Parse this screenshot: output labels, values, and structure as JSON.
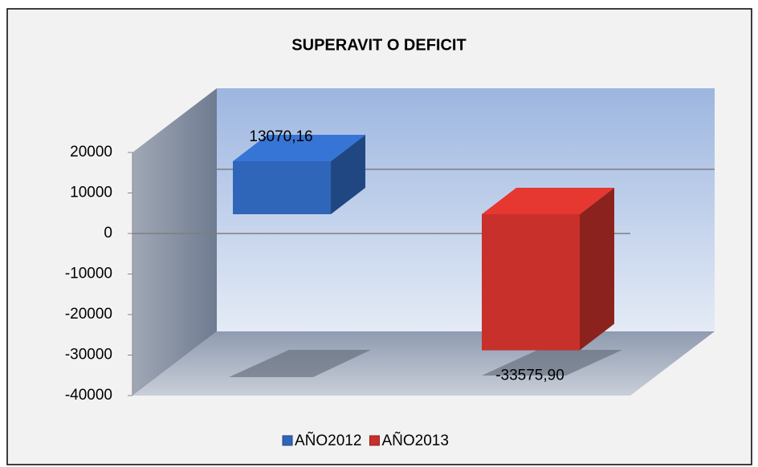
{
  "chart_data": {
    "type": "bar",
    "title": "SUPERAVIT O DEFICIT",
    "series": [
      {
        "name": "AÑO2012",
        "color": "#2f66b9",
        "values": [
          13070.16
        ],
        "value_labels": [
          "13070,16"
        ]
      },
      {
        "name": "AÑO2013",
        "color": "#c8302b",
        "values": [
          -33575.9
        ],
        "value_labels": [
          "-33575,90"
        ]
      }
    ],
    "ylim": [
      -40000,
      20000
    ],
    "yticks": [
      20000,
      10000,
      0,
      -10000,
      -20000,
      -30000,
      -40000
    ],
    "legend": "bottom",
    "grid": true
  }
}
